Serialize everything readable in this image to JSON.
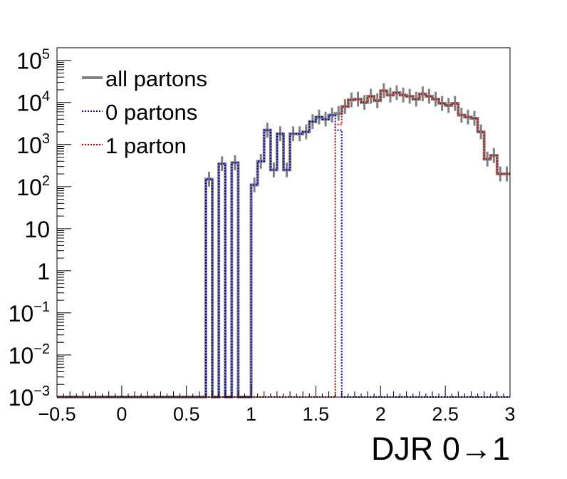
{
  "chart_data": {
    "type": "line",
    "xlabel": "DJR 0→1",
    "ylabel": "",
    "xlim": [
      -0.5,
      3.0
    ],
    "ylim_log10": [
      -3,
      5.3
    ],
    "yscale": "log",
    "grid": false,
    "legend_position": "top-left",
    "x_ticks": [
      {
        "value": -0.5,
        "label": "−0.5"
      },
      {
        "value": 0,
        "label": "0"
      },
      {
        "value": 0.5,
        "label": "0.5"
      },
      {
        "value": 1,
        "label": "1"
      },
      {
        "value": 1.5,
        "label": "1.5"
      },
      {
        "value": 2,
        "label": "2"
      },
      {
        "value": 2.5,
        "label": "2.5"
      },
      {
        "value": 3,
        "label": "3"
      }
    ],
    "y_ticks": [
      {
        "exp": 5,
        "base": "10",
        "sup": "5"
      },
      {
        "exp": 4,
        "base": "10",
        "sup": "4"
      },
      {
        "exp": 3,
        "base": "10",
        "sup": "3"
      },
      {
        "exp": 2,
        "base": "10",
        "sup": "2"
      },
      {
        "exp": 1,
        "base": "10",
        "sup": ""
      },
      {
        "exp": 0,
        "base": "1",
        "sup": ""
      },
      {
        "exp": -1,
        "base": "10",
        "sup": "−1"
      },
      {
        "exp": -2,
        "base": "10",
        "sup": "−2"
      },
      {
        "exp": -3,
        "base": "10",
        "sup": "−3"
      }
    ],
    "bin_edges": [
      -0.5,
      3.0
    ],
    "n_bins": 70,
    "series": [
      {
        "name": "all partons",
        "color": "#808080",
        "style": "solid",
        "values": [
          0.001,
          0.001,
          0.001,
          0.001,
          0.001,
          0.001,
          0.001,
          0.001,
          0.001,
          0.001,
          0.001,
          0.001,
          0.001,
          0.001,
          0.001,
          0.001,
          0.001,
          0.001,
          0.001,
          0.001,
          0.001,
          0.001,
          0.001,
          150,
          0.001,
          350,
          0.001,
          370,
          0.001,
          0.001,
          110,
          400,
          2200,
          250,
          1800,
          250,
          1800,
          1800,
          2000,
          3500,
          4500,
          4000,
          5000,
          5500,
          8000,
          11500,
          12000,
          10000,
          14000,
          11000,
          19000,
          15000,
          17000,
          15000,
          14000,
          12000,
          16000,
          14000,
          12000,
          9500,
          8500,
          9500,
          5000,
          4500,
          4200,
          2000,
          450,
          550,
          200,
          200
        ],
        "errors_rel": 0.5
      },
      {
        "name": "0 partons",
        "color": "#0000cc",
        "style": "dotted",
        "values": [
          0.001,
          0.001,
          0.001,
          0.001,
          0.001,
          0.001,
          0.001,
          0.001,
          0.001,
          0.001,
          0.001,
          0.001,
          0.001,
          0.001,
          0.001,
          0.001,
          0.001,
          0.001,
          0.001,
          0.001,
          0.001,
          0.001,
          0.001,
          150,
          0.001,
          350,
          0.001,
          370,
          0.001,
          0.001,
          110,
          400,
          2200,
          250,
          1800,
          250,
          1800,
          1800,
          2000,
          3500,
          4500,
          4000,
          5000,
          2200,
          0.001,
          0.001,
          0.001,
          0.001,
          0.001,
          0.001,
          0.001,
          0.001,
          0.001,
          0.001,
          0.001,
          0.001,
          0.001,
          0.001,
          0.001,
          0.001,
          0.001,
          0.001,
          0.001,
          0.001,
          0.001,
          0.001,
          0.001,
          0.001,
          0.001,
          0.001
        ]
      },
      {
        "name": "1 parton",
        "color": "#cc0000",
        "style": "dotted",
        "values": [
          0.001,
          0.001,
          0.001,
          0.001,
          0.001,
          0.001,
          0.001,
          0.001,
          0.001,
          0.001,
          0.001,
          0.001,
          0.001,
          0.001,
          0.001,
          0.001,
          0.001,
          0.001,
          0.001,
          0.001,
          0.001,
          0.001,
          0.001,
          0.001,
          0.001,
          0.001,
          0.001,
          0.001,
          0.001,
          0.001,
          0.001,
          0.001,
          0.001,
          0.001,
          0.001,
          0.001,
          0.001,
          0.001,
          0.001,
          0.001,
          0.001,
          0.001,
          0.001,
          3000,
          8000,
          11500,
          12000,
          10000,
          14000,
          11000,
          19000,
          15000,
          17000,
          15000,
          14000,
          12000,
          16000,
          14000,
          12000,
          9500,
          8500,
          9500,
          5000,
          4500,
          4200,
          2000,
          450,
          550,
          200,
          200
        ]
      }
    ]
  },
  "legend": [
    {
      "label": "all partons",
      "color": "#808080",
      "style": "solid"
    },
    {
      "label": "0 partons",
      "color": "#0000cc",
      "style": "dotted"
    },
    {
      "label": "1 parton",
      "color": "#cc0000",
      "style": "dotted"
    }
  ]
}
